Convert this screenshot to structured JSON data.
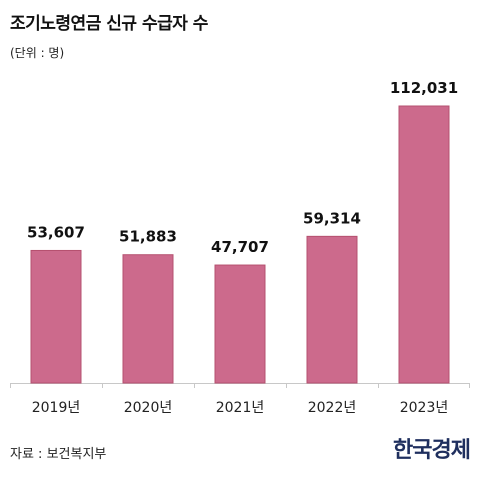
{
  "header": {
    "title": "조기노령연금 신규 수급자 수",
    "unit": "(단위 : 명)"
  },
  "footer": {
    "source": "자료 : 보건복지부",
    "logo_text": "한국경제"
  },
  "colors": {
    "bar": "#cc6a8c",
    "bar_border": "#b5506f",
    "baseline": "#c8c8c8"
  },
  "chart_data": {
    "type": "bar",
    "title": "조기노령연금 신규 수급자 수",
    "xlabel": "",
    "ylabel": "",
    "unit": "(단위 : 명)",
    "categories": [
      "2019년",
      "2020년",
      "2021년",
      "2022년",
      "2023년"
    ],
    "values": [
      53607,
      51883,
      47707,
      59314,
      112031
    ],
    "value_labels": [
      "53,607",
      "51,883",
      "47,707",
      "59,314",
      "112,031"
    ],
    "ylim": [
      0,
      112031
    ],
    "grid": false,
    "legend": "none"
  }
}
